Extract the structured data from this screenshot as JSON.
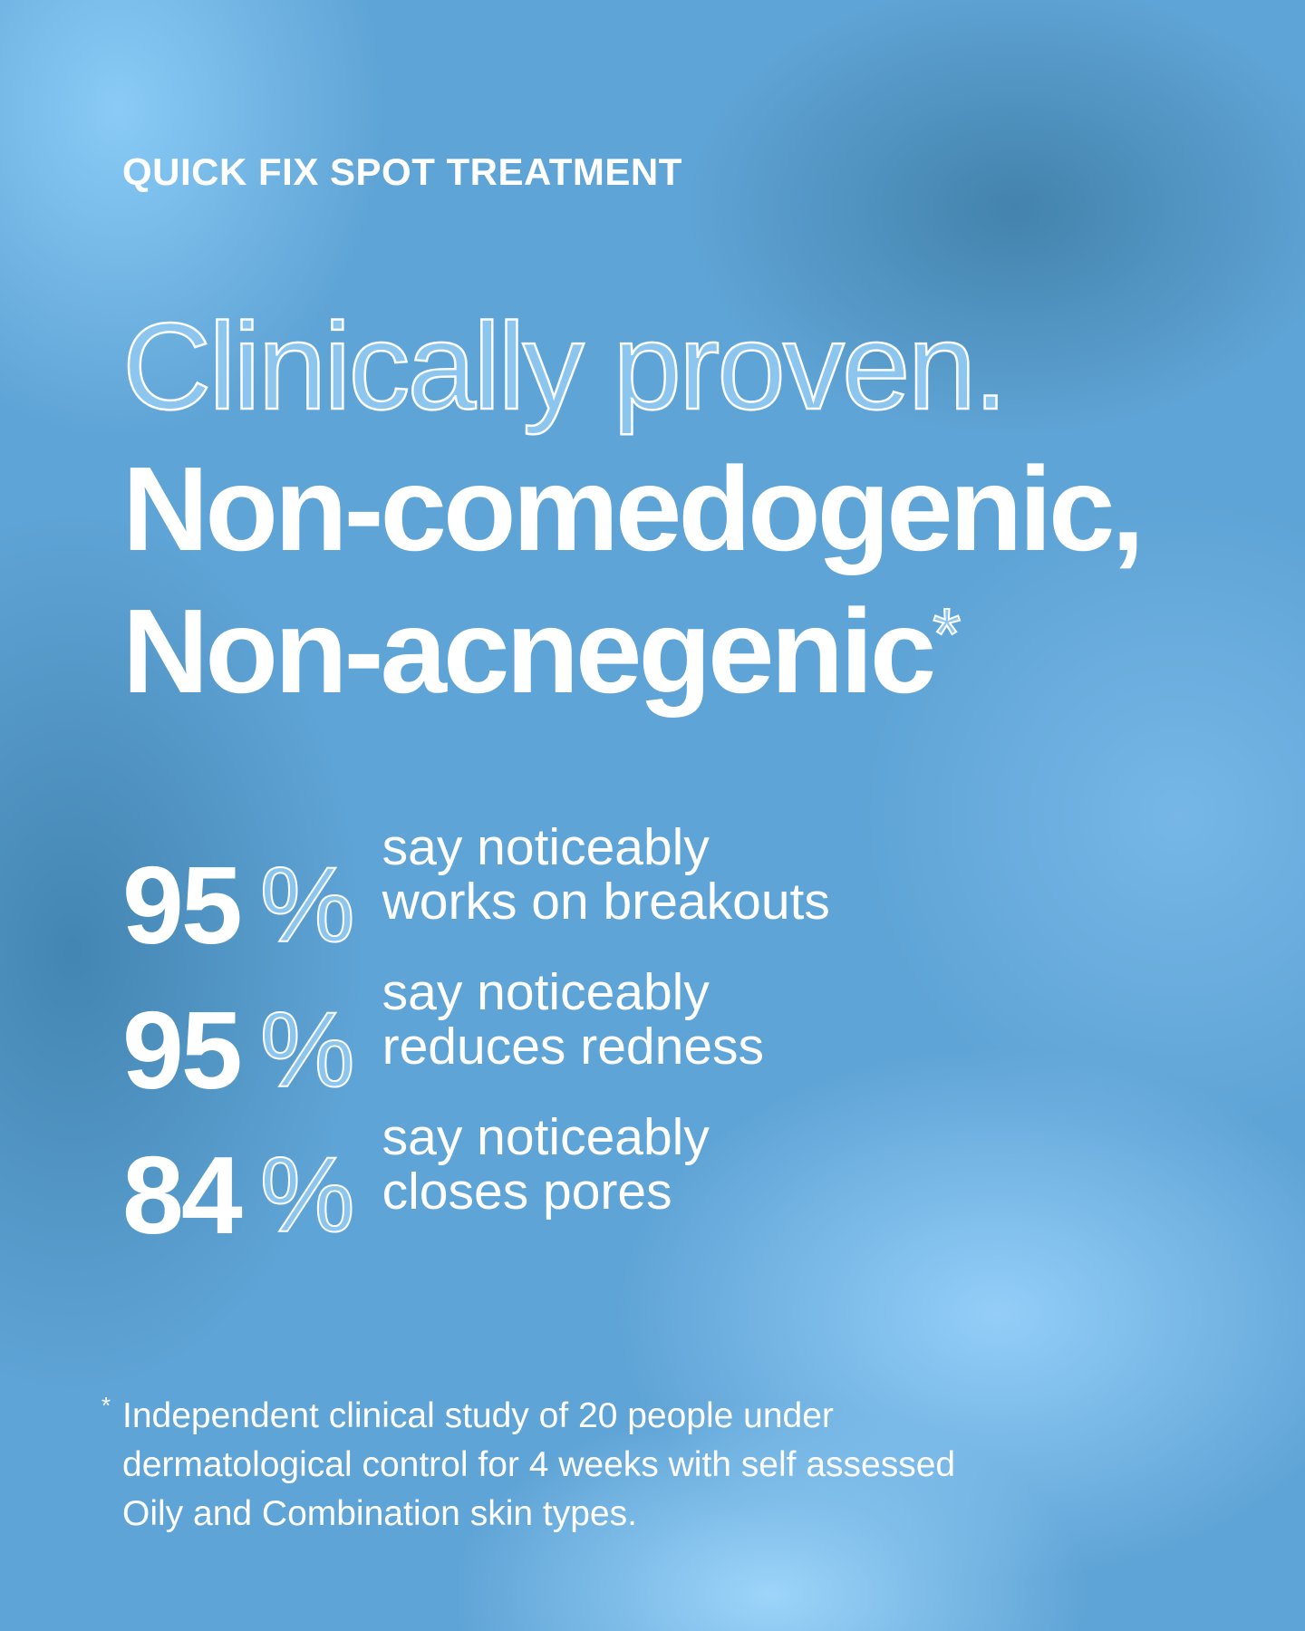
{
  "eyebrow": "QUICK FIX SPOT TREATMENT",
  "headline": {
    "outline": "Clinically proven.",
    "line1": "Non-comedogenic,",
    "line2": "Non-acnegenic",
    "asterisk": "*"
  },
  "stats": [
    {
      "value": "95",
      "unit": "%",
      "line1": "say noticeably",
      "line2": "works on breakouts"
    },
    {
      "value": "95",
      "unit": "%",
      "line1": "say noticeably",
      "line2": "reduces redness"
    },
    {
      "value": "84",
      "unit": "%",
      "line1": "say noticeably",
      "line2": "closes pores"
    }
  ],
  "footnote": {
    "marker": "*",
    "lines": [
      "Independent clinical study of 20 people under",
      "dermatological control for 4 weeks with self assessed",
      "Oily and Combination skin types."
    ]
  },
  "colors": {
    "background": "#5fa4d6",
    "text": "#ffffff"
  }
}
